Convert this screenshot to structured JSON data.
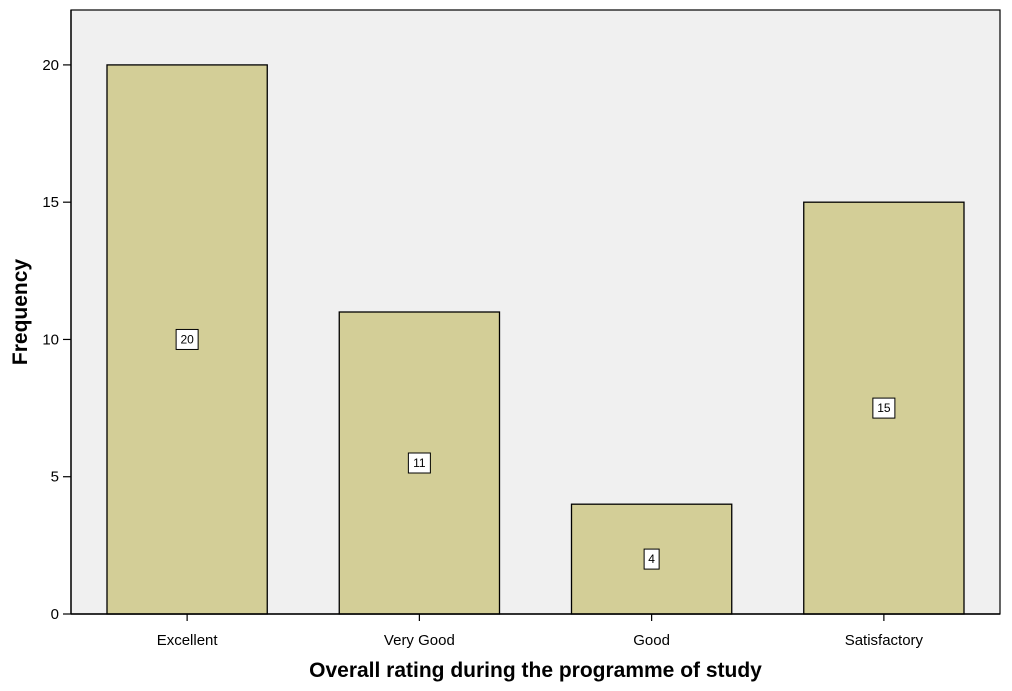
{
  "chart_data": {
    "type": "bar",
    "title": "",
    "xlabel": "Overall rating during the programme of study",
    "ylabel": "Frequency",
    "categories": [
      "Excellent",
      "Very Good",
      "Good",
      "Satisfactory"
    ],
    "values": [
      20,
      11,
      4,
      15
    ],
    "data_labels": [
      "20",
      "11",
      "4",
      "15"
    ],
    "ylim": [
      0,
      22
    ],
    "yticks": [
      0,
      5,
      10,
      15,
      20
    ],
    "ytick_labels": [
      "0",
      "5",
      "10",
      "15",
      "20"
    ],
    "grid": false,
    "legend": "none",
    "colors": {
      "plot_background": "#f0f0f0",
      "bar_fill": "#d3ce97",
      "bar_stroke": "#000000",
      "label_box_fill": "#ffffff"
    }
  }
}
